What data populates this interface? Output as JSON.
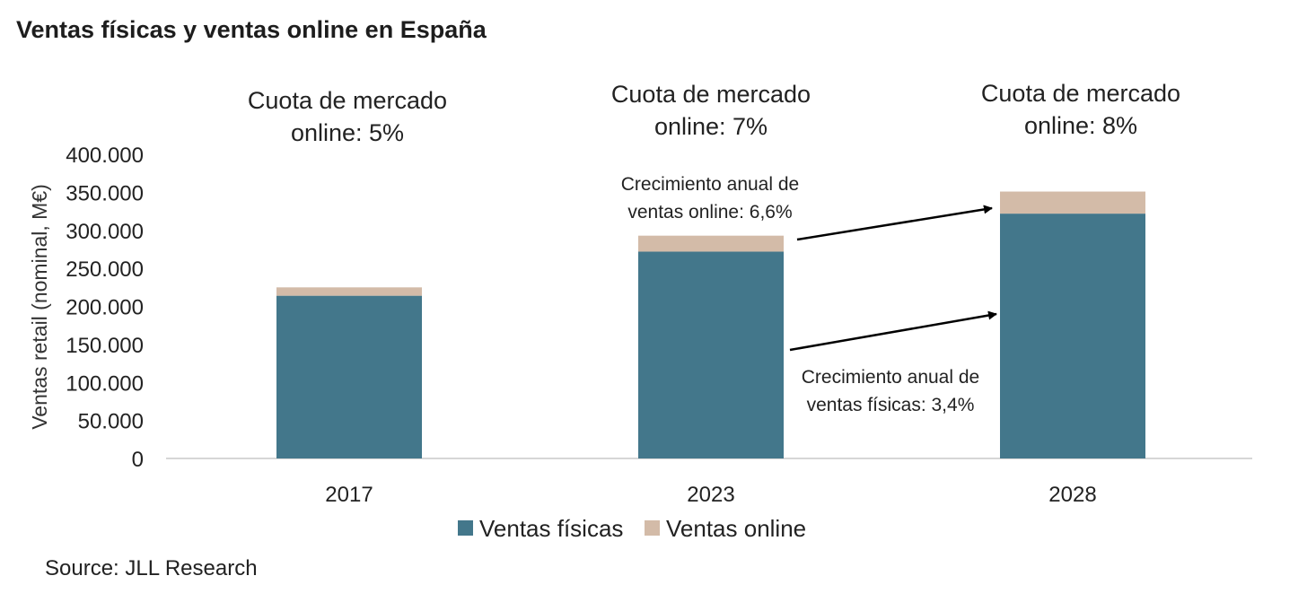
{
  "chart_data": {
    "type": "bar",
    "stacked": true,
    "title": "Ventas físicas y ventas online en España",
    "ylabel": "Ventas retail (nominal, M€)",
    "xlabel": "",
    "ylim": [
      0,
      400000
    ],
    "yticks": [
      0,
      50000,
      100000,
      150000,
      200000,
      250000,
      300000,
      350000,
      400000
    ],
    "ytick_labels": [
      "0",
      "50.000",
      "100.000",
      "150.000",
      "200.000",
      "250.000",
      "300.000",
      "350.000",
      "400.000"
    ],
    "categories": [
      "2017",
      "2023",
      "2028"
    ],
    "series": [
      {
        "name": "Ventas físicas",
        "color": "#43778b",
        "values": [
          214000,
          272000,
          322000
        ]
      },
      {
        "name": "Ventas online",
        "color": "#d3bba8",
        "values": [
          11000,
          21000,
          29000
        ]
      }
    ],
    "annotations": {
      "market_share": [
        [
          "Cuota de mercado",
          "online: 5%"
        ],
        [
          "Cuota de mercado",
          "online: 7%"
        ],
        [
          "Cuota de mercado",
          "online: 8%"
        ]
      ],
      "online_growth": [
        "Crecimiento anual de",
        "ventas online: 6,6%"
      ],
      "physical_growth": [
        "Crecimiento anual de",
        "ventas físicas: 3,4%"
      ]
    },
    "legend": {
      "placement": "bottom",
      "entries": [
        "Ventas físicas",
        "Ventas online"
      ]
    },
    "source": "Source: JLL Research",
    "grid": false
  }
}
